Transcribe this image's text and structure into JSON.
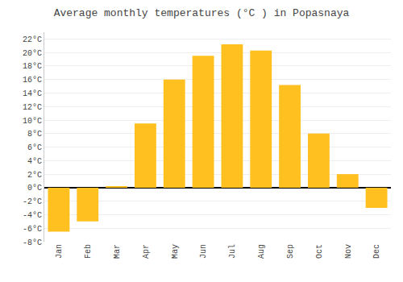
{
  "chart_data": {
    "type": "bar",
    "title": "Average monthly temperatures (°C ) in Popasnaya",
    "categories": [
      "Jan",
      "Feb",
      "Mar",
      "Apr",
      "May",
      "Jun",
      "Jul",
      "Aug",
      "Sep",
      "Oct",
      "Nov",
      "Dec"
    ],
    "values": [
      -6.5,
      -5.0,
      0.2,
      9.5,
      16.0,
      19.5,
      21.2,
      20.3,
      15.2,
      8.0,
      2.0,
      -3.0
    ],
    "color": "#FFC020",
    "ylim": [
      -8,
      23
    ],
    "yticks": [
      {
        "value": -8,
        "label": "-8°C"
      },
      {
        "value": -6,
        "label": "-6°C"
      },
      {
        "value": -4,
        "label": "-4°C"
      },
      {
        "value": -2,
        "label": "-2°C"
      },
      {
        "value": 0,
        "label": "0°C"
      },
      {
        "value": 2,
        "label": "2°C"
      },
      {
        "value": 4,
        "label": "4°C"
      },
      {
        "value": 6,
        "label": "6°C"
      },
      {
        "value": 8,
        "label": "8°C"
      },
      {
        "value": 10,
        "label": "10°C"
      },
      {
        "value": 12,
        "label": "12°C"
      },
      {
        "value": 14,
        "label": "14°C"
      },
      {
        "value": 16,
        "label": "16°C"
      },
      {
        "value": 18,
        "label": "18°C"
      },
      {
        "value": 20,
        "label": "20°C"
      },
      {
        "value": 22,
        "label": "22°C"
      }
    ],
    "grid": true
  }
}
